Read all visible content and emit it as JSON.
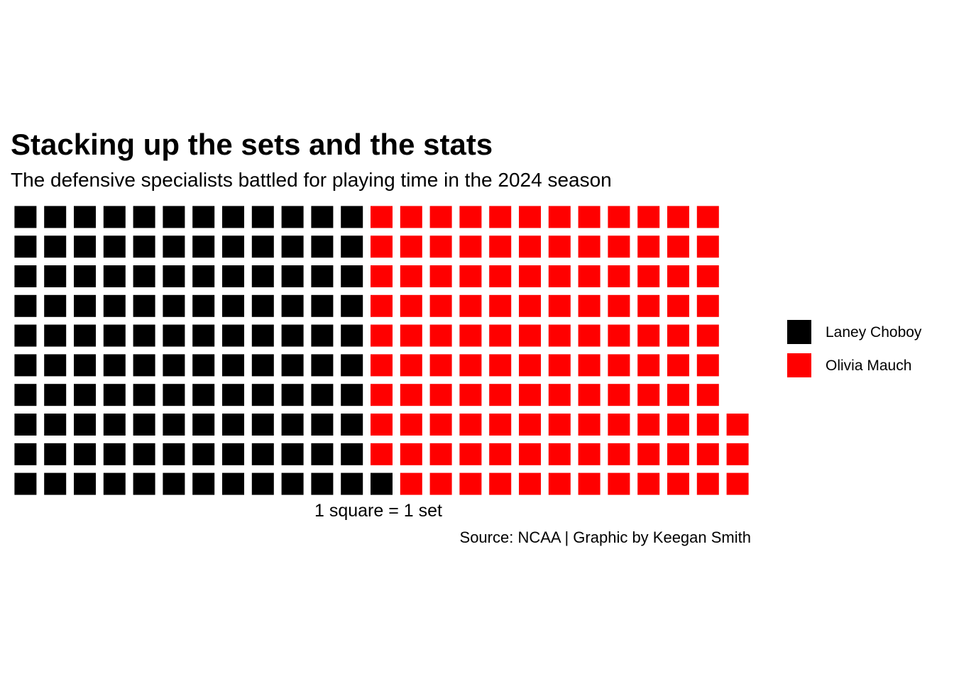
{
  "chart_data": {
    "type": "waffle",
    "title": "Stacking up the sets and the stats",
    "subtitle": "The defensive specialists battled for playing time in the 2024 season",
    "xlabel": "1 square = 1 set",
    "caption": "Source: NCAA | Graphic by Keegan Smith",
    "rows": 10,
    "fill_order": "column-major, bottom to top",
    "series": [
      {
        "name": "Laney Choboy",
        "value": 121,
        "color": "#000000"
      },
      {
        "name": "Olivia Mauch",
        "value": 122,
        "color": "#FF0000"
      }
    ],
    "legend_position": "right",
    "grid": false
  }
}
